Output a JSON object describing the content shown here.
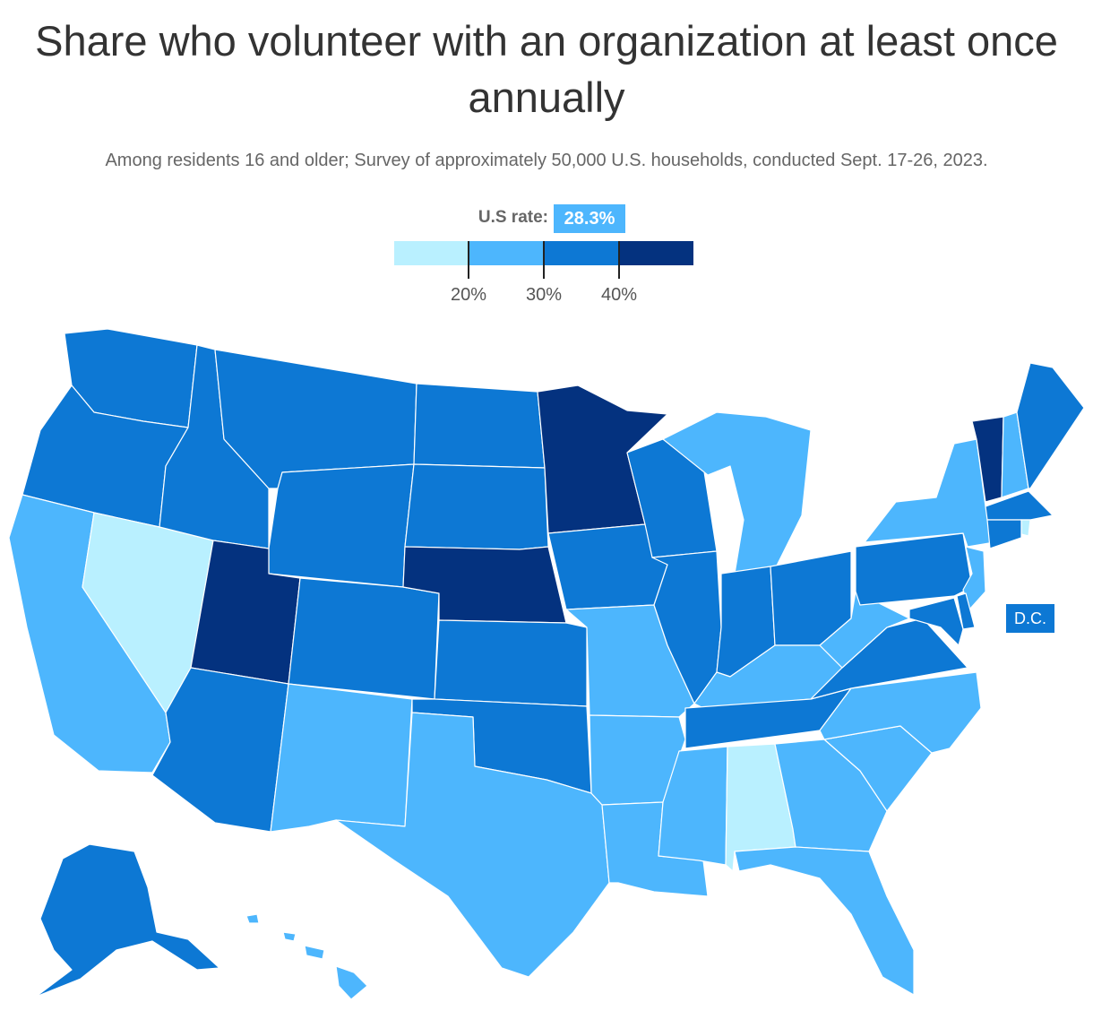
{
  "title": "Share who volunteer with an organization at least once annually",
  "subtitle": "Among residents 16 and older; Survey of approximately 50,000 U.S. households, conducted Sept. 17-26, 2023.",
  "us_rate": {
    "label": "U.S rate:",
    "value": "28.3%"
  },
  "legend": {
    "colors": [
      "#b9f0ff",
      "#4db6fd",
      "#0d78d4",
      "#04327f"
    ],
    "tick_labels": [
      "20%",
      "30%",
      "40%"
    ]
  },
  "dc_label": "D.C.",
  "colors": {
    "light": "#b9f0ff",
    "mid": "#4db6fd",
    "dark": "#0d78d4",
    "darkest": "#04327f",
    "border": "#ffffff"
  },
  "states": {
    "WA": "dark",
    "OR": "dark",
    "CA": "mid",
    "NV": "light",
    "ID": "dark",
    "MT": "dark",
    "WY": "dark",
    "UT": "darkest",
    "AZ": "dark",
    "CO": "dark",
    "NM": "mid",
    "ND": "dark",
    "SD": "dark",
    "NE": "darkest",
    "KS": "dark",
    "OK": "dark",
    "TX": "mid",
    "MN": "darkest",
    "IA": "dark",
    "MO": "mid",
    "AR": "mid",
    "LA": "mid",
    "WI": "dark",
    "IL": "dark",
    "MI": "mid",
    "IN": "dark",
    "OH": "dark",
    "KY": "mid",
    "TN": "dark",
    "MS": "mid",
    "AL": "light",
    "GA": "mid",
    "FL": "mid",
    "SC": "mid",
    "NC": "mid",
    "VA": "dark",
    "WV": "mid",
    "PA": "dark",
    "NY": "mid",
    "VT": "darkest",
    "NH": "mid",
    "ME": "dark",
    "MA": "dark",
    "RI": "light",
    "CT": "dark",
    "NJ": "mid",
    "DE": "dark",
    "MD": "dark",
    "AK": "dark",
    "HI": "mid",
    "DC": "dark"
  }
}
